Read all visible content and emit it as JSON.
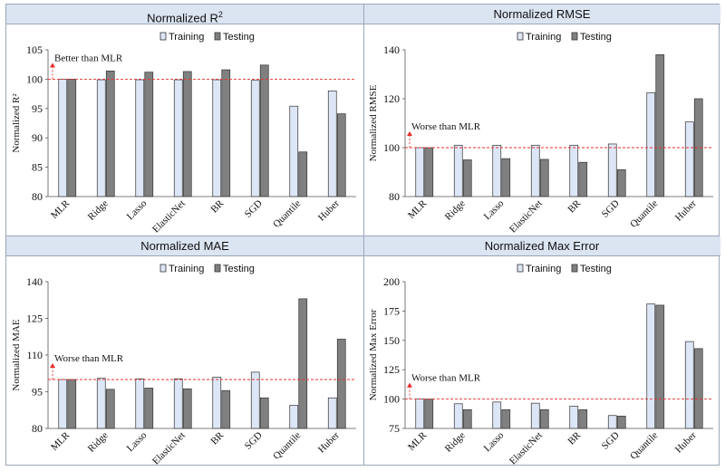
{
  "chart_data": [
    {
      "type": "bar",
      "title": "Normalized R",
      "title_sup": "2",
      "ylabel": "Normalized R²",
      "categories": [
        "MLR",
        "Ridge",
        "Lasso",
        "ElasticNet",
        "BR",
        "SGD",
        "Quantile",
        "Huber"
      ],
      "series": [
        {
          "name": "Training",
          "values": [
            100,
            99.9,
            99.9,
            99.9,
            99.9,
            99.8,
            95.4,
            98.0
          ]
        },
        {
          "name": "Testing",
          "values": [
            100,
            101.4,
            101.2,
            101.3,
            101.6,
            102.4,
            87.6,
            94.1
          ]
        }
      ],
      "ylim": [
        80,
        105
      ],
      "yticks": [
        80,
        85,
        90,
        95,
        100,
        105
      ],
      "reference_line": 100,
      "annotation": "Better than MLR",
      "arrow": "up"
    },
    {
      "type": "bar",
      "title": "Normalized RMSE",
      "ylabel": "Normalized RMSE",
      "categories": [
        "MLR",
        "Ridge",
        "Lasso",
        "ElasticNet",
        "BR",
        "SGD",
        "Quantile",
        "Huber"
      ],
      "series": [
        {
          "name": "Training",
          "values": [
            100,
            101,
            101,
            101,
            101,
            101.5,
            122.5,
            110.5
          ]
        },
        {
          "name": "Testing",
          "values": [
            100,
            95,
            95.5,
            95.2,
            94,
            91,
            138,
            120
          ]
        }
      ],
      "ylim": [
        80,
        140
      ],
      "yticks": [
        80,
        100,
        120,
        140
      ],
      "reference_line": 100,
      "annotation": "Worse than MLR",
      "arrow": "up"
    },
    {
      "type": "bar",
      "title": "Normalized MAE",
      "ylabel": "Normalized MAE",
      "categories": [
        "MLR",
        "Ridge",
        "Lasso",
        "ElasticNet",
        "BR",
        "SGD",
        "Quantile",
        "Huber"
      ],
      "series": [
        {
          "name": "Training",
          "values": [
            100,
            100.5,
            100.3,
            100.3,
            101,
            103,
            89.5,
            92.5
          ]
        },
        {
          "name": "Testing",
          "values": [
            100,
            96,
            96.5,
            96.2,
            95.5,
            92.5,
            133,
            116.5
          ]
        }
      ],
      "ylim": [
        80,
        140
      ],
      "yticks": [
        80,
        95,
        110,
        125,
        140
      ],
      "reference_line": 100,
      "annotation": "Worse than MLR",
      "arrow": "up"
    },
    {
      "type": "bar",
      "title": "Normalized Max Error",
      "ylabel": "Normalized Max Error",
      "categories": [
        "MLR",
        "Ridge",
        "Lasso",
        "ElasticNet",
        "BR",
        "SGD",
        "Quantile",
        "Huber"
      ],
      "series": [
        {
          "name": "Training",
          "values": [
            100,
            96,
            97.5,
            96.5,
            94,
            86,
            181,
            149
          ]
        },
        {
          "name": "Testing",
          "values": [
            100,
            91,
            91,
            91,
            91,
            85.5,
            180,
            143
          ]
        }
      ],
      "ylim": [
        75,
        200
      ],
      "yticks": [
        75,
        100,
        125,
        150,
        175,
        200
      ],
      "reference_line": 100,
      "annotation": "Worse than MLR",
      "arrow": "up"
    }
  ],
  "colors": {
    "training": "#dde6f6",
    "testing": "#808080",
    "reference": "#e8302c",
    "header_bg": "#dbe4f1",
    "border": "#9aa7b8"
  }
}
